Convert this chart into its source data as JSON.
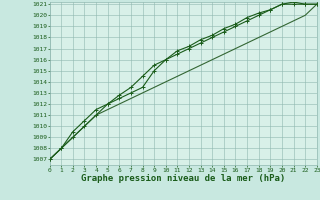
{
  "title": "Graphe pression niveau de la mer (hPa)",
  "x_values": [
    0,
    1,
    2,
    3,
    4,
    5,
    6,
    7,
    8,
    9,
    10,
    11,
    12,
    13,
    14,
    15,
    16,
    17,
    18,
    19,
    20,
    21,
    22,
    23
  ],
  "series1": [
    1007,
    1008,
    1009,
    1010,
    1011,
    1012,
    1012.5,
    1013,
    1013.5,
    1015,
    1016,
    1016.5,
    1017,
    1017.5,
    1018,
    1018.5,
    1019,
    1019.5,
    1020,
    1020.5,
    1021,
    1021,
    1021,
    1021
  ],
  "series2": [
    1007,
    1008,
    1009.5,
    1010.5,
    1011.5,
    1012,
    1012.8,
    1013.5,
    1014.5,
    1015.5,
    1016,
    1016.8,
    1017.2,
    1017.8,
    1018.2,
    1018.8,
    1019.2,
    1019.8,
    1020.2,
    1020.5,
    1021,
    1021.2,
    1021,
    1021
  ],
  "series3": [
    1007,
    1008,
    1009,
    1010,
    1011,
    1011.5,
    1012,
    1012.5,
    1013,
    1013.5,
    1014,
    1014.5,
    1015,
    1015.5,
    1016,
    1016.5,
    1017,
    1017.5,
    1018,
    1018.5,
    1019,
    1019.5,
    1020,
    1021
  ],
  "ytick_min": 1007,
  "ytick_max": 1021,
  "bg_color": "#c8e8e0",
  "plot_bg_color": "#d8f0e8",
  "grid_color": "#90b8b0",
  "line_color": "#1a5c1a",
  "line_color2": "#336633",
  "linewidth": 0.8,
  "title_fontsize": 6.5,
  "tick_fontsize": 4.5
}
